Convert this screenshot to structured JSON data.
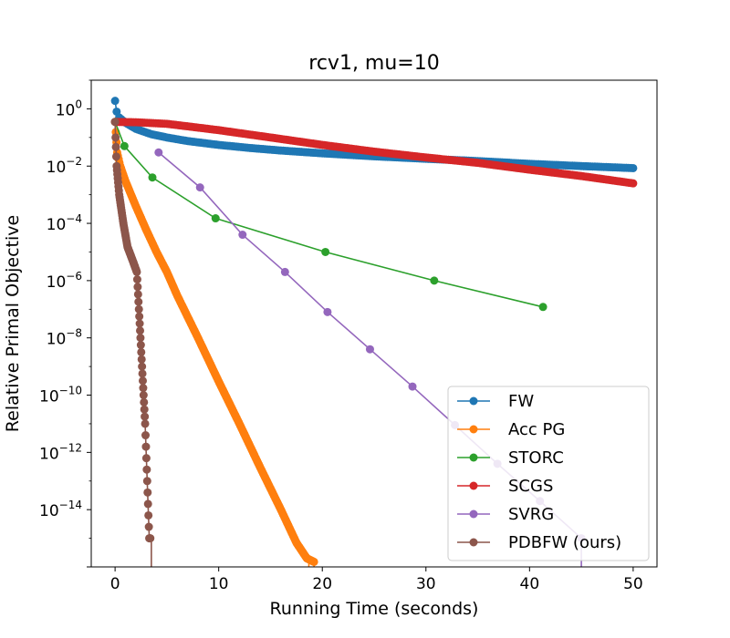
{
  "chart_data": {
    "type": "line",
    "title": "rcv1, mu=10",
    "xlabel": "Running Time (seconds)",
    "ylabel": "Relative Primal Objective",
    "xlim": [
      -2.3,
      52.3
    ],
    "ylim": [
      1e-16,
      10
    ],
    "yscale": "log",
    "xticks": [
      0,
      10,
      20,
      30,
      40,
      50
    ],
    "xtick_labels": [
      "0",
      "10",
      "20",
      "30",
      "40",
      "50"
    ],
    "yticks": [
      1e-14,
      1e-12,
      1e-10,
      1e-08,
      1e-06,
      0.0001,
      0.01,
      1
    ],
    "ytick_labels": [
      {
        "base": "10",
        "exp": "−14"
      },
      {
        "base": "10",
        "exp": "−12"
      },
      {
        "base": "10",
        "exp": "−10"
      },
      {
        "base": "10",
        "exp": "−8"
      },
      {
        "base": "10",
        "exp": "−6"
      },
      {
        "base": "10",
        "exp": "−4"
      },
      {
        "base": "10",
        "exp": "−2"
      },
      {
        "base": "10",
        "exp": "0"
      }
    ],
    "grid": false,
    "legend_position": "bottom-right",
    "series": [
      {
        "name": "FW",
        "color": "#1f77b4",
        "dense": true,
        "points": [
          [
            0,
            1.9
          ],
          [
            0.15,
            0.8
          ],
          [
            0.4,
            0.5
          ],
          [
            1,
            0.33
          ],
          [
            2,
            0.2
          ],
          [
            3.5,
            0.13
          ],
          [
            5,
            0.1
          ],
          [
            7,
            0.075
          ],
          [
            10,
            0.055
          ],
          [
            13,
            0.043
          ],
          [
            16,
            0.035
          ],
          [
            20,
            0.028
          ],
          [
            25,
            0.022
          ],
          [
            30,
            0.018
          ],
          [
            35,
            0.015
          ],
          [
            40,
            0.012
          ],
          [
            45,
            0.01
          ],
          [
            50,
            0.0085
          ]
        ]
      },
      {
        "name": "Acc PG",
        "color": "#ff7f0e",
        "dense": true,
        "drop_x": [
          18.7,
          19.2
        ],
        "points": [
          [
            0,
            0.35
          ],
          [
            0.2,
            0.03
          ],
          [
            0.5,
            0.01
          ],
          [
            1,
            0.003
          ],
          [
            2,
            0.0004
          ],
          [
            3,
            6e-05
          ],
          [
            4,
            1e-05
          ],
          [
            5,
            2e-06
          ],
          [
            6,
            3e-07
          ],
          [
            8,
            1e-08
          ],
          [
            10,
            3e-10
          ],
          [
            12,
            1e-11
          ],
          [
            14,
            3e-13
          ],
          [
            16,
            1e-14
          ],
          [
            17.5,
            7e-16
          ],
          [
            18.5,
            2e-16
          ],
          [
            19.2,
            1.5e-16
          ]
        ]
      },
      {
        "name": "STORC",
        "color": "#2ca02c",
        "dense": false,
        "points": [
          [
            0,
            0.35
          ],
          [
            0.9,
            0.05
          ],
          [
            3.6,
            0.004
          ],
          [
            9.7,
            0.00015
          ],
          [
            20.3,
            1e-05
          ],
          [
            30.8,
            1e-06
          ],
          [
            41.3,
            1.2e-07
          ]
        ]
      },
      {
        "name": "SCGS",
        "color": "#d62728",
        "dense": true,
        "points": [
          [
            0,
            0.35
          ],
          [
            2,
            0.34
          ],
          [
            5,
            0.3
          ],
          [
            10,
            0.18
          ],
          [
            15,
            0.1
          ],
          [
            20,
            0.055
          ],
          [
            25,
            0.032
          ],
          [
            30,
            0.02
          ],
          [
            35,
            0.013
          ],
          [
            40,
            0.0075
          ],
          [
            45,
            0.0045
          ],
          [
            50,
            0.0025
          ]
        ]
      },
      {
        "name": "SVRG",
        "color": "#9467bd",
        "dense": false,
        "drop_x": [
          45
        ],
        "points": [
          [
            4.2,
            0.03
          ],
          [
            8.2,
            0.0018
          ],
          [
            12.3,
            4e-05
          ],
          [
            16.4,
            2e-06
          ],
          [
            20.5,
            8e-08
          ],
          [
            24.6,
            4e-09
          ],
          [
            28.7,
            2e-10
          ],
          [
            32.8,
            9e-12
          ],
          [
            36.9,
            4e-13
          ],
          [
            41,
            2e-14
          ],
          [
            45,
            1e-15
          ]
        ]
      },
      {
        "name": "PDBFW (ours)",
        "color": "#8c564b",
        "dense": true,
        "drop_x": [
          3.5
        ],
        "points": [
          [
            0,
            0.35
          ],
          [
            0.05,
            0.1
          ],
          [
            0.15,
            0.01
          ],
          [
            0.4,
            0.001
          ],
          [
            0.8,
            0.0001
          ],
          [
            1.2,
            1.5e-05
          ],
          [
            1.7,
            5e-06
          ],
          [
            2.1,
            2e-06
          ],
          [
            2.3,
            1e-07
          ],
          [
            2.6,
            1e-09
          ],
          [
            2.9,
            1e-11
          ],
          [
            3.1,
            1e-13
          ],
          [
            3.3,
            1e-15
          ],
          [
            3.4,
            1e-15
          ]
        ]
      }
    ]
  }
}
